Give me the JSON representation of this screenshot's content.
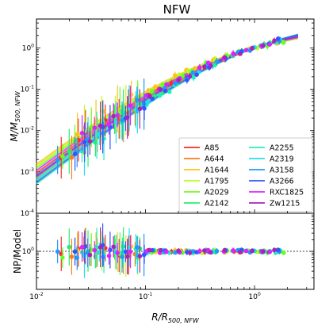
{
  "chart_data": {
    "type": "scatter",
    "title": "NFW",
    "xlabel": "R/R",
    "xlabel_sub": "500, NFW",
    "xscale": "log",
    "xlim": [
      0.01,
      3.5
    ],
    "x_ticks": [
      {
        "v": 0.01,
        "label": "10",
        "exp": "-2"
      },
      {
        "v": 0.1,
        "label": "10",
        "exp": "-1"
      },
      {
        "v": 1,
        "label": "10",
        "exp": "0"
      }
    ],
    "panels": [
      {
        "name": "mass-profile",
        "ylabel": "M/M",
        "ylabel_sub": "500, NFW",
        "yscale": "log",
        "ylim": [
          0.0001,
          5
        ],
        "y_ticks": [
          {
            "v": 0.0001,
            "label": "10",
            "exp": "-4"
          },
          {
            "v": 0.001,
            "label": "10",
            "exp": "-3"
          },
          {
            "v": 0.01,
            "label": "10",
            "exp": "-2"
          },
          {
            "v": 0.1,
            "label": "10",
            "exp": "-1"
          },
          {
            "v": 1,
            "label": "10",
            "exp": "0"
          }
        ]
      },
      {
        "name": "ratio",
        "ylabel": "NP/Model",
        "yscale": "log",
        "ylim": [
          0.1,
          10
        ],
        "y_ticks": [
          {
            "v": 1,
            "label": "10",
            "exp": "0"
          }
        ],
        "reference_line": 1
      }
    ],
    "legend_position": "lower-right",
    "series": [
      {
        "name": "A85",
        "color": "#ff2a2a"
      },
      {
        "name": "A644",
        "color": "#ff7a1a"
      },
      {
        "name": "A1644",
        "color": "#ffc21a"
      },
      {
        "name": "A1795",
        "color": "#b6ff1a"
      },
      {
        "name": "A2029",
        "color": "#66ff22"
      },
      {
        "name": "A2142",
        "color": "#22ee77"
      },
      {
        "name": "A2255",
        "color": "#22eebb"
      },
      {
        "name": "A2319",
        "color": "#22ddee"
      },
      {
        "name": "A3158",
        "color": "#2299ff"
      },
      {
        "name": "A3266",
        "color": "#3355ff"
      },
      {
        "name": "RXC1825",
        "color": "#dd22ff"
      },
      {
        "name": "Zw1215",
        "color": "#aa22bb"
      }
    ]
  }
}
